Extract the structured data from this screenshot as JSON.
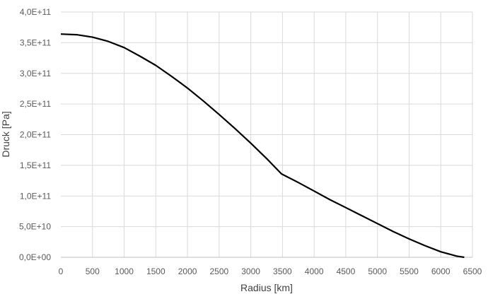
{
  "chart_data": {
    "type": "line",
    "xlabel": "Radius [km]",
    "ylabel": "Druck [Pa]",
    "xlim": [
      0,
      6500
    ],
    "ylim": [
      0,
      400000000000
    ],
    "x_ticks": [
      0,
      500,
      1000,
      1500,
      2000,
      2500,
      3000,
      3500,
      4000,
      4500,
      5000,
      5500,
      6000,
      6500
    ],
    "x_tick_labels": [
      "0",
      "500",
      "1000",
      "1500",
      "2000",
      "2500",
      "3000",
      "3500",
      "4000",
      "4500",
      "5000",
      "5500",
      "6000",
      "6500"
    ],
    "y_ticks": [
      0,
      50000000000,
      100000000000,
      150000000000,
      200000000000,
      250000000000,
      300000000000,
      350000000000,
      400000000000
    ],
    "y_tick_labels": [
      "0,0E+00",
      "5,0E+10",
      "1,0E+11",
      "1,5E+11",
      "2,0E+11",
      "2,5E+11",
      "3,0E+11",
      "3,5E+11",
      "4,0E+11"
    ],
    "grid": true,
    "legend": "none",
    "series": [
      {
        "color": "#000000",
        "x": [
          0,
          250,
          500,
          750,
          1000,
          1250,
          1500,
          1750,
          2000,
          2250,
          2500,
          2750,
          3000,
          3250,
          3485,
          3750,
          4000,
          4250,
          4500,
          4750,
          5000,
          5250,
          5500,
          5750,
          6000,
          6250,
          6371
        ],
        "y": [
          364000000000,
          363000000000,
          359000000000,
          352000000000,
          342000000000,
          328000000000,
          313000000000,
          295000000000,
          276000000000,
          255000000000,
          233000000000,
          210000000000,
          186000000000,
          161000000000,
          136000000000,
          122000000000,
          108000000000,
          94000000000,
          81000000000,
          68000000000,
          55000000000,
          42000000000,
          30000000000,
          19000000000,
          9000000000,
          2000000000,
          0
        ]
      }
    ]
  }
}
